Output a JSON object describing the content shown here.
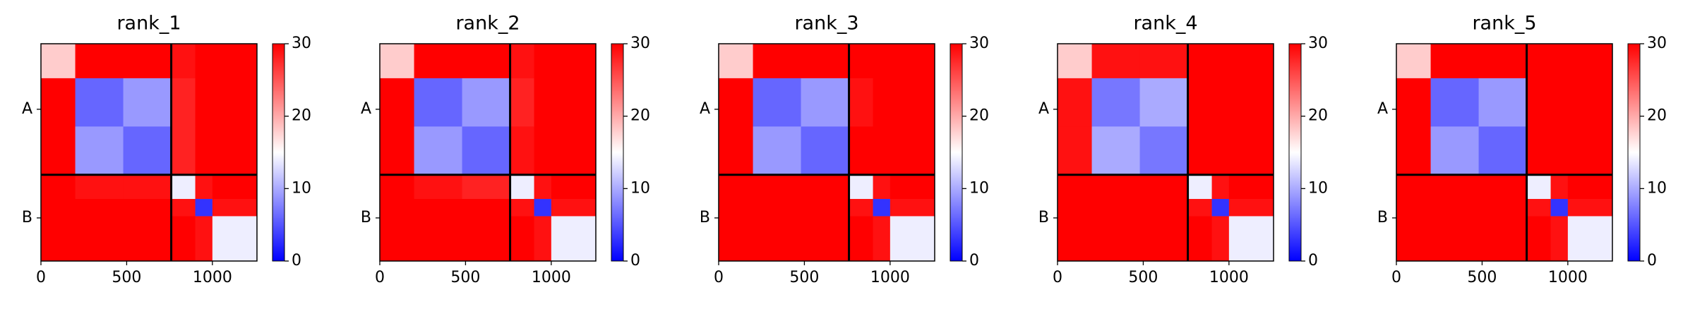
{
  "chart_data": [
    {
      "type": "heatmap",
      "title": "rank_1",
      "xbins": [
        0,
        200,
        480,
        760,
        900,
        1000,
        1260
      ],
      "ybins": [
        0,
        200,
        480,
        760,
        900,
        1000,
        1260
      ],
      "z": [
        [
          18,
          30,
          30,
          29,
          30,
          30
        ],
        [
          30,
          6,
          9,
          28,
          30,
          30
        ],
        [
          30,
          9,
          6,
          28,
          30,
          30
        ],
        [
          30,
          29,
          29,
          14,
          29,
          30
        ],
        [
          30,
          30,
          30,
          29,
          3,
          29
        ],
        [
          30,
          30,
          30,
          30,
          29,
          14
        ]
      ],
      "boundaries": [
        760
      ],
      "xlim": [
        0,
        1260
      ],
      "xticks": [
        0,
        500,
        1000
      ],
      "ylim": [
        1260,
        0
      ],
      "yticks": [
        {
          "value": 380,
          "label": "A"
        },
        {
          "value": 1010,
          "label": "B"
        }
      ],
      "clim": [
        0,
        30
      ],
      "cticks": [
        0,
        10,
        20,
        30
      ],
      "colors": [
        "#0000ff",
        "#ffffff",
        "#ff0000"
      ]
    },
    {
      "type": "heatmap",
      "title": "rank_2",
      "xbins": [
        0,
        200,
        480,
        760,
        900,
        1000,
        1260
      ],
      "ybins": [
        0,
        200,
        480,
        760,
        900,
        1000,
        1260
      ],
      "z": [
        [
          18,
          30,
          30,
          29,
          30,
          30
        ],
        [
          30,
          6,
          9,
          28,
          30,
          30
        ],
        [
          30,
          9,
          6,
          29,
          30,
          30
        ],
        [
          30,
          29,
          28,
          14,
          29,
          30
        ],
        [
          30,
          30,
          30,
          29,
          3,
          29
        ],
        [
          30,
          30,
          30,
          30,
          29,
          14
        ]
      ],
      "boundaries": [
        760
      ],
      "xlim": [
        0,
        1260
      ],
      "xticks": [
        0,
        500,
        1000
      ],
      "ylim": [
        1260,
        0
      ],
      "yticks": [
        {
          "value": 380,
          "label": "A"
        },
        {
          "value": 1010,
          "label": "B"
        }
      ],
      "clim": [
        0,
        30
      ],
      "cticks": [
        0,
        10,
        20,
        30
      ],
      "colors": [
        "#0000ff",
        "#ffffff",
        "#ff0000"
      ]
    },
    {
      "type": "heatmap",
      "title": "rank_3",
      "xbins": [
        0,
        200,
        480,
        760,
        900,
        1000,
        1260
      ],
      "ybins": [
        0,
        200,
        480,
        760,
        900,
        1000,
        1260
      ],
      "z": [
        [
          18,
          30,
          30,
          30,
          30,
          30
        ],
        [
          30,
          6,
          9,
          29,
          30,
          30
        ],
        [
          30,
          9,
          6,
          30,
          30,
          30
        ],
        [
          30,
          30,
          30,
          14,
          29,
          30
        ],
        [
          30,
          30,
          30,
          29,
          3,
          29
        ],
        [
          30,
          30,
          30,
          30,
          29,
          14
        ]
      ],
      "boundaries": [
        760
      ],
      "xlim": [
        0,
        1260
      ],
      "xticks": [
        0,
        500,
        1000
      ],
      "ylim": [
        1260,
        0
      ],
      "yticks": [
        {
          "value": 380,
          "label": "A"
        },
        {
          "value": 1010,
          "label": "B"
        }
      ],
      "clim": [
        0,
        30
      ],
      "cticks": [
        0,
        10,
        20,
        30
      ],
      "colors": [
        "#0000ff",
        "#ffffff",
        "#ff0000"
      ]
    },
    {
      "type": "heatmap",
      "title": "rank_4",
      "xbins": [
        0,
        200,
        480,
        760,
        900,
        1000,
        1260
      ],
      "ybins": [
        0,
        200,
        480,
        760,
        900,
        1000,
        1260
      ],
      "z": [
        [
          18,
          29,
          29,
          30,
          30,
          30
        ],
        [
          29,
          7,
          10,
          30,
          30,
          30
        ],
        [
          29,
          10,
          7,
          30,
          30,
          30
        ],
        [
          30,
          30,
          30,
          14,
          29,
          30
        ],
        [
          30,
          30,
          30,
          29,
          3,
          29
        ],
        [
          30,
          30,
          30,
          30,
          29,
          14
        ]
      ],
      "boundaries": [
        760
      ],
      "xlim": [
        0,
        1260
      ],
      "xticks": [
        0,
        500,
        1000
      ],
      "ylim": [
        1260,
        0
      ],
      "yticks": [
        {
          "value": 380,
          "label": "A"
        },
        {
          "value": 1010,
          "label": "B"
        }
      ],
      "clim": [
        0,
        30
      ],
      "cticks": [
        0,
        10,
        20,
        30
      ],
      "colors": [
        "#0000ff",
        "#ffffff",
        "#ff0000"
      ]
    },
    {
      "type": "heatmap",
      "title": "rank_5",
      "xbins": [
        0,
        200,
        480,
        760,
        900,
        1000,
        1260
      ],
      "ybins": [
        0,
        200,
        480,
        760,
        900,
        1000,
        1260
      ],
      "z": [
        [
          18,
          30,
          30,
          30,
          30,
          30
        ],
        [
          30,
          6,
          9,
          30,
          30,
          30
        ],
        [
          30,
          9,
          6,
          30,
          30,
          30
        ],
        [
          30,
          30,
          30,
          14,
          29,
          30
        ],
        [
          30,
          30,
          30,
          29,
          3,
          29
        ],
        [
          30,
          30,
          30,
          30,
          29,
          14
        ]
      ],
      "boundaries": [
        760
      ],
      "xlim": [
        0,
        1260
      ],
      "xticks": [
        0,
        500,
        1000
      ],
      "ylim": [
        1260,
        0
      ],
      "yticks": [
        {
          "value": 380,
          "label": "A"
        },
        {
          "value": 1010,
          "label": "B"
        }
      ],
      "clim": [
        0,
        30
      ],
      "cticks": [
        0,
        10,
        20,
        30
      ],
      "colors": [
        "#0000ff",
        "#ffffff",
        "#ff0000"
      ]
    }
  ]
}
